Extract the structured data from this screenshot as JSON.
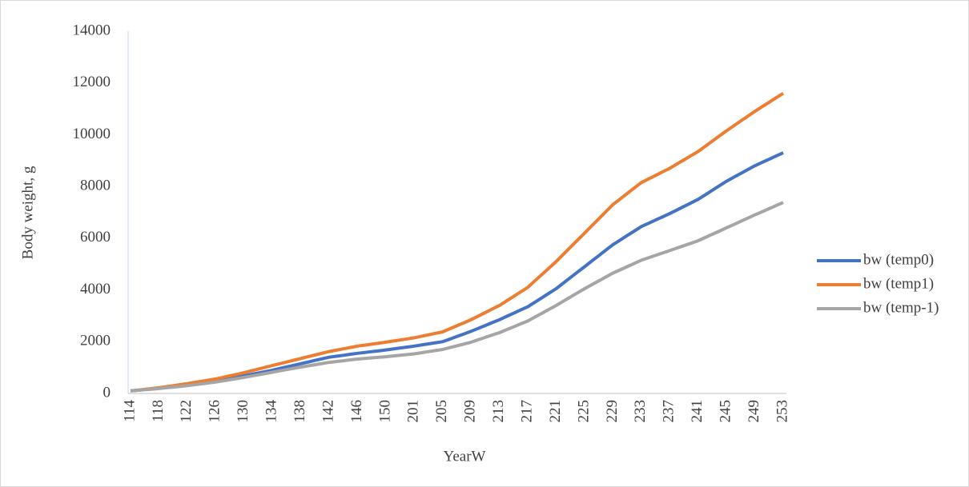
{
  "chart_data": {
    "type": "line",
    "x_label": "YearW",
    "y_label": "Body weight, g",
    "categories": [
      "114",
      null,
      null,
      null,
      "118",
      null,
      null,
      null,
      "122",
      null,
      null,
      null,
      "126",
      null,
      null,
      null,
      "130",
      null,
      null,
      null,
      "134",
      null,
      null,
      null,
      "138",
      null,
      null,
      null,
      "142",
      null,
      null,
      null,
      "146",
      null,
      null,
      null,
      "150",
      null,
      null,
      null,
      "201",
      null,
      null,
      null,
      "205",
      null,
      null,
      null,
      "209",
      null,
      null,
      null,
      "213",
      null,
      null,
      null,
      "217",
      null,
      null,
      null,
      "221",
      null,
      null,
      null,
      "225",
      null,
      null,
      null,
      "229",
      null,
      null,
      null,
      "233",
      null,
      null,
      null,
      "237",
      null,
      null,
      null,
      "241",
      null,
      null,
      null,
      "245",
      null,
      null,
      null,
      "249",
      null,
      null,
      null,
      "253"
    ],
    "series": [
      {
        "name": "bw (temp0)",
        "color": "#4472c4",
        "values": [
          100,
          125,
          150,
          175,
          200,
          233,
          265,
          298,
          330,
          368,
          405,
          443,
          480,
          530,
          580,
          630,
          680,
          735,
          790,
          845,
          900,
          963,
          1025,
          1088,
          1150,
          1213,
          1275,
          1338,
          1400,
          1438,
          1475,
          1513,
          1550,
          1583,
          1615,
          1648,
          1680,
          1718,
          1755,
          1793,
          1830,
          1873,
          1915,
          1958,
          2000,
          2100,
          2200,
          2300,
          2400,
          2513,
          2625,
          2738,
          2850,
          2975,
          3100,
          3225,
          3350,
          3525,
          3700,
          3875,
          4050,
          4263,
          4475,
          4688,
          4900,
          5113,
          5325,
          5538,
          5750,
          5925,
          6100,
          6275,
          6450,
          6575,
          6700,
          6825,
          6950,
          7088,
          7225,
          7363,
          7500,
          7675,
          7850,
          8025,
          8200,
          8350,
          8500,
          8650,
          8800,
          8925,
          9050,
          9175,
          9300
        ]
      },
      {
        "name": "bw (temp1)",
        "color": "#ed7d31",
        "values": [
          100,
          130,
          160,
          190,
          220,
          260,
          300,
          340,
          380,
          425,
          470,
          515,
          560,
          620,
          680,
          740,
          800,
          870,
          940,
          1010,
          1080,
          1148,
          1215,
          1283,
          1350,
          1418,
          1485,
          1553,
          1620,
          1673,
          1725,
          1778,
          1830,
          1868,
          1905,
          1943,
          1980,
          2023,
          2065,
          2108,
          2150,
          2208,
          2265,
          2323,
          2380,
          2498,
          2615,
          2733,
          2850,
          2988,
          3125,
          3263,
          3400,
          3575,
          3750,
          3925,
          4100,
          4350,
          4600,
          4850,
          5100,
          5375,
          5650,
          5925,
          6200,
          6475,
          6750,
          7025,
          7300,
          7513,
          7725,
          7938,
          8150,
          8288,
          8425,
          8563,
          8700,
          8863,
          9025,
          9188,
          9350,
          9550,
          9750,
          9950,
          10150,
          10338,
          10525,
          10713,
          10900,
          11075,
          11250,
          11425,
          11600
        ]
      },
      {
        "name": "bw (temp-1)",
        "color": "#a5a5a5",
        "values": [
          100,
          123,
          145,
          168,
          190,
          218,
          245,
          273,
          300,
          335,
          370,
          405,
          440,
          485,
          530,
          575,
          620,
          670,
          720,
          770,
          820,
          870,
          920,
          970,
          1020,
          1065,
          1110,
          1155,
          1200,
          1233,
          1265,
          1298,
          1330,
          1353,
          1375,
          1398,
          1420,
          1448,
          1475,
          1503,
          1530,
          1573,
          1615,
          1658,
          1700,
          1770,
          1840,
          1910,
          1980,
          2073,
          2165,
          2258,
          2350,
          2463,
          2575,
          2688,
          2800,
          2950,
          3100,
          3250,
          3400,
          3563,
          3725,
          3888,
          4050,
          4200,
          4350,
          4500,
          4650,
          4775,
          4900,
          5025,
          5150,
          5243,
          5335,
          5428,
          5520,
          5615,
          5710,
          5805,
          5900,
          6025,
          6150,
          6275,
          6400,
          6525,
          6650,
          6775,
          6900,
          7020,
          7140,
          7260,
          7380
        ]
      }
    ],
    "ylim": [
      0,
      14000
    ],
    "yticks": [
      0,
      2000,
      4000,
      6000,
      8000,
      10000,
      12000,
      14000
    ],
    "grid": false,
    "legend": "right"
  }
}
